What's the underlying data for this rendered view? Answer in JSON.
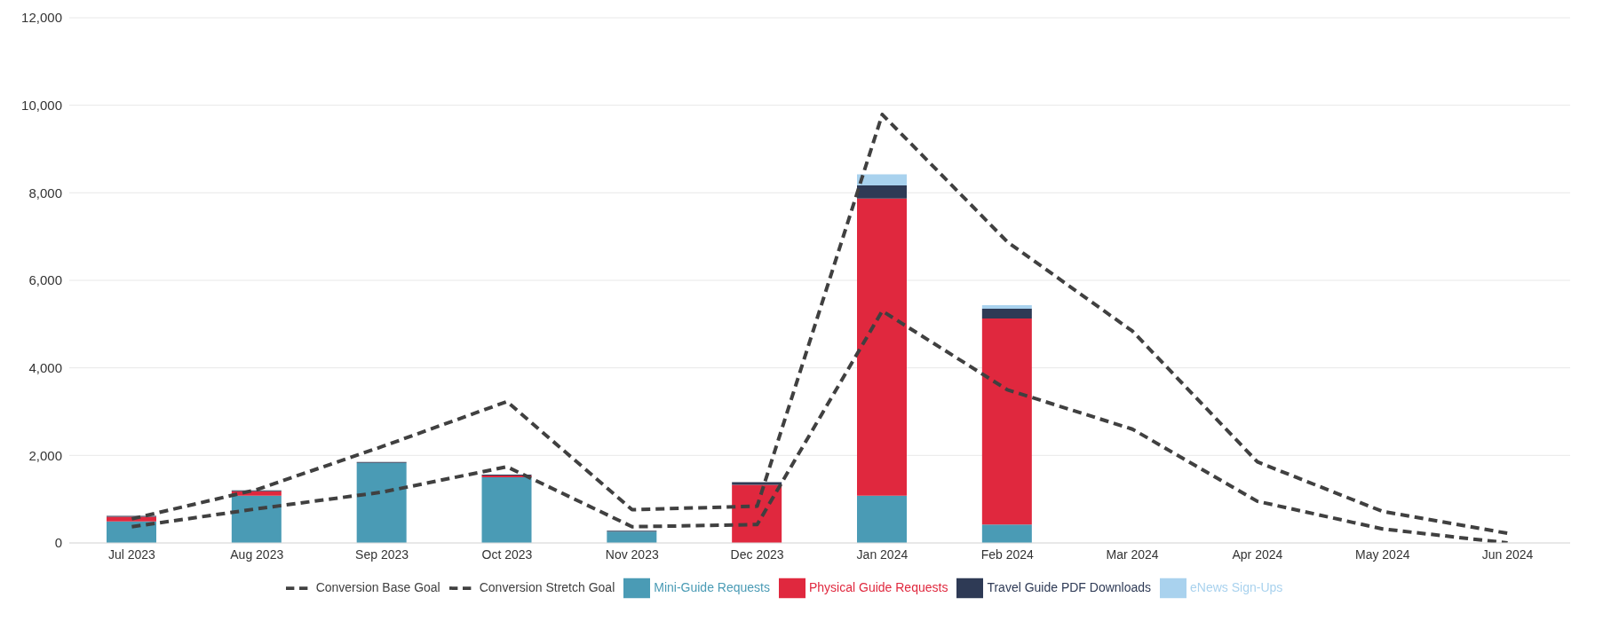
{
  "chart_data": {
    "type": "bar",
    "stacked": true,
    "categories": [
      "Jul 2023",
      "Aug 2023",
      "Sep 2023",
      "Oct 2023",
      "Nov 2023",
      "Dec 2023",
      "Jan 2024",
      "Feb 2024",
      "Mar 2024",
      "Apr 2024",
      "May 2024",
      "Jun 2024"
    ],
    "series": [
      {
        "name": "Mini-Guide Requests",
        "color": "#4a9bb5",
        "values": [
          490,
          1080,
          1830,
          1500,
          260,
          0,
          1080,
          420,
          null,
          null,
          null,
          null
        ]
      },
      {
        "name": "Physical Guide Requests",
        "color": "#e0283e",
        "values": [
          110,
          100,
          0,
          40,
          0,
          1330,
          6790,
          4710,
          null,
          null,
          null,
          null
        ]
      },
      {
        "name": "Travel Guide PDF Downloads",
        "color": "#2e3a55",
        "values": [
          20,
          20,
          20,
          20,
          20,
          60,
          300,
          220,
          null,
          null,
          null,
          null
        ]
      },
      {
        "name": "eNews Sign-Ups",
        "color": "#a9d2ee",
        "values": [
          0,
          0,
          0,
          0,
          0,
          0,
          250,
          80,
          null,
          null,
          null,
          null
        ]
      },
      {
        "name": "Conversion Base Goal",
        "type": "line",
        "line_style": "dashed",
        "marker": "none",
        "color": "#404040",
        "values": [
          370,
          780,
          1160,
          1740,
          370,
          420,
          5300,
          3500,
          2600,
          950,
          320,
          0
        ]
      },
      {
        "name": "Conversion Stretch Goal",
        "type": "line",
        "line_style": "dashed",
        "marker": "none",
        "color": "#404040",
        "values": [
          550,
          1220,
          2200,
          3230,
          760,
          840,
          9790,
          6880,
          4840,
          1850,
          720,
          220
        ]
      }
    ],
    "ylim": [
      0,
      12000
    ],
    "yticks": [
      {
        "value": 0,
        "label": "0"
      },
      {
        "value": 2000,
        "label": "2,000"
      },
      {
        "value": 4000,
        "label": "4,000"
      },
      {
        "value": 6000,
        "label": "6,000"
      },
      {
        "value": 8000,
        "label": "8,000"
      },
      {
        "value": 10000,
        "label": "10,000"
      },
      {
        "value": 12000,
        "label": "12,000"
      }
    ],
    "grid": "y",
    "legend": "bottom"
  }
}
